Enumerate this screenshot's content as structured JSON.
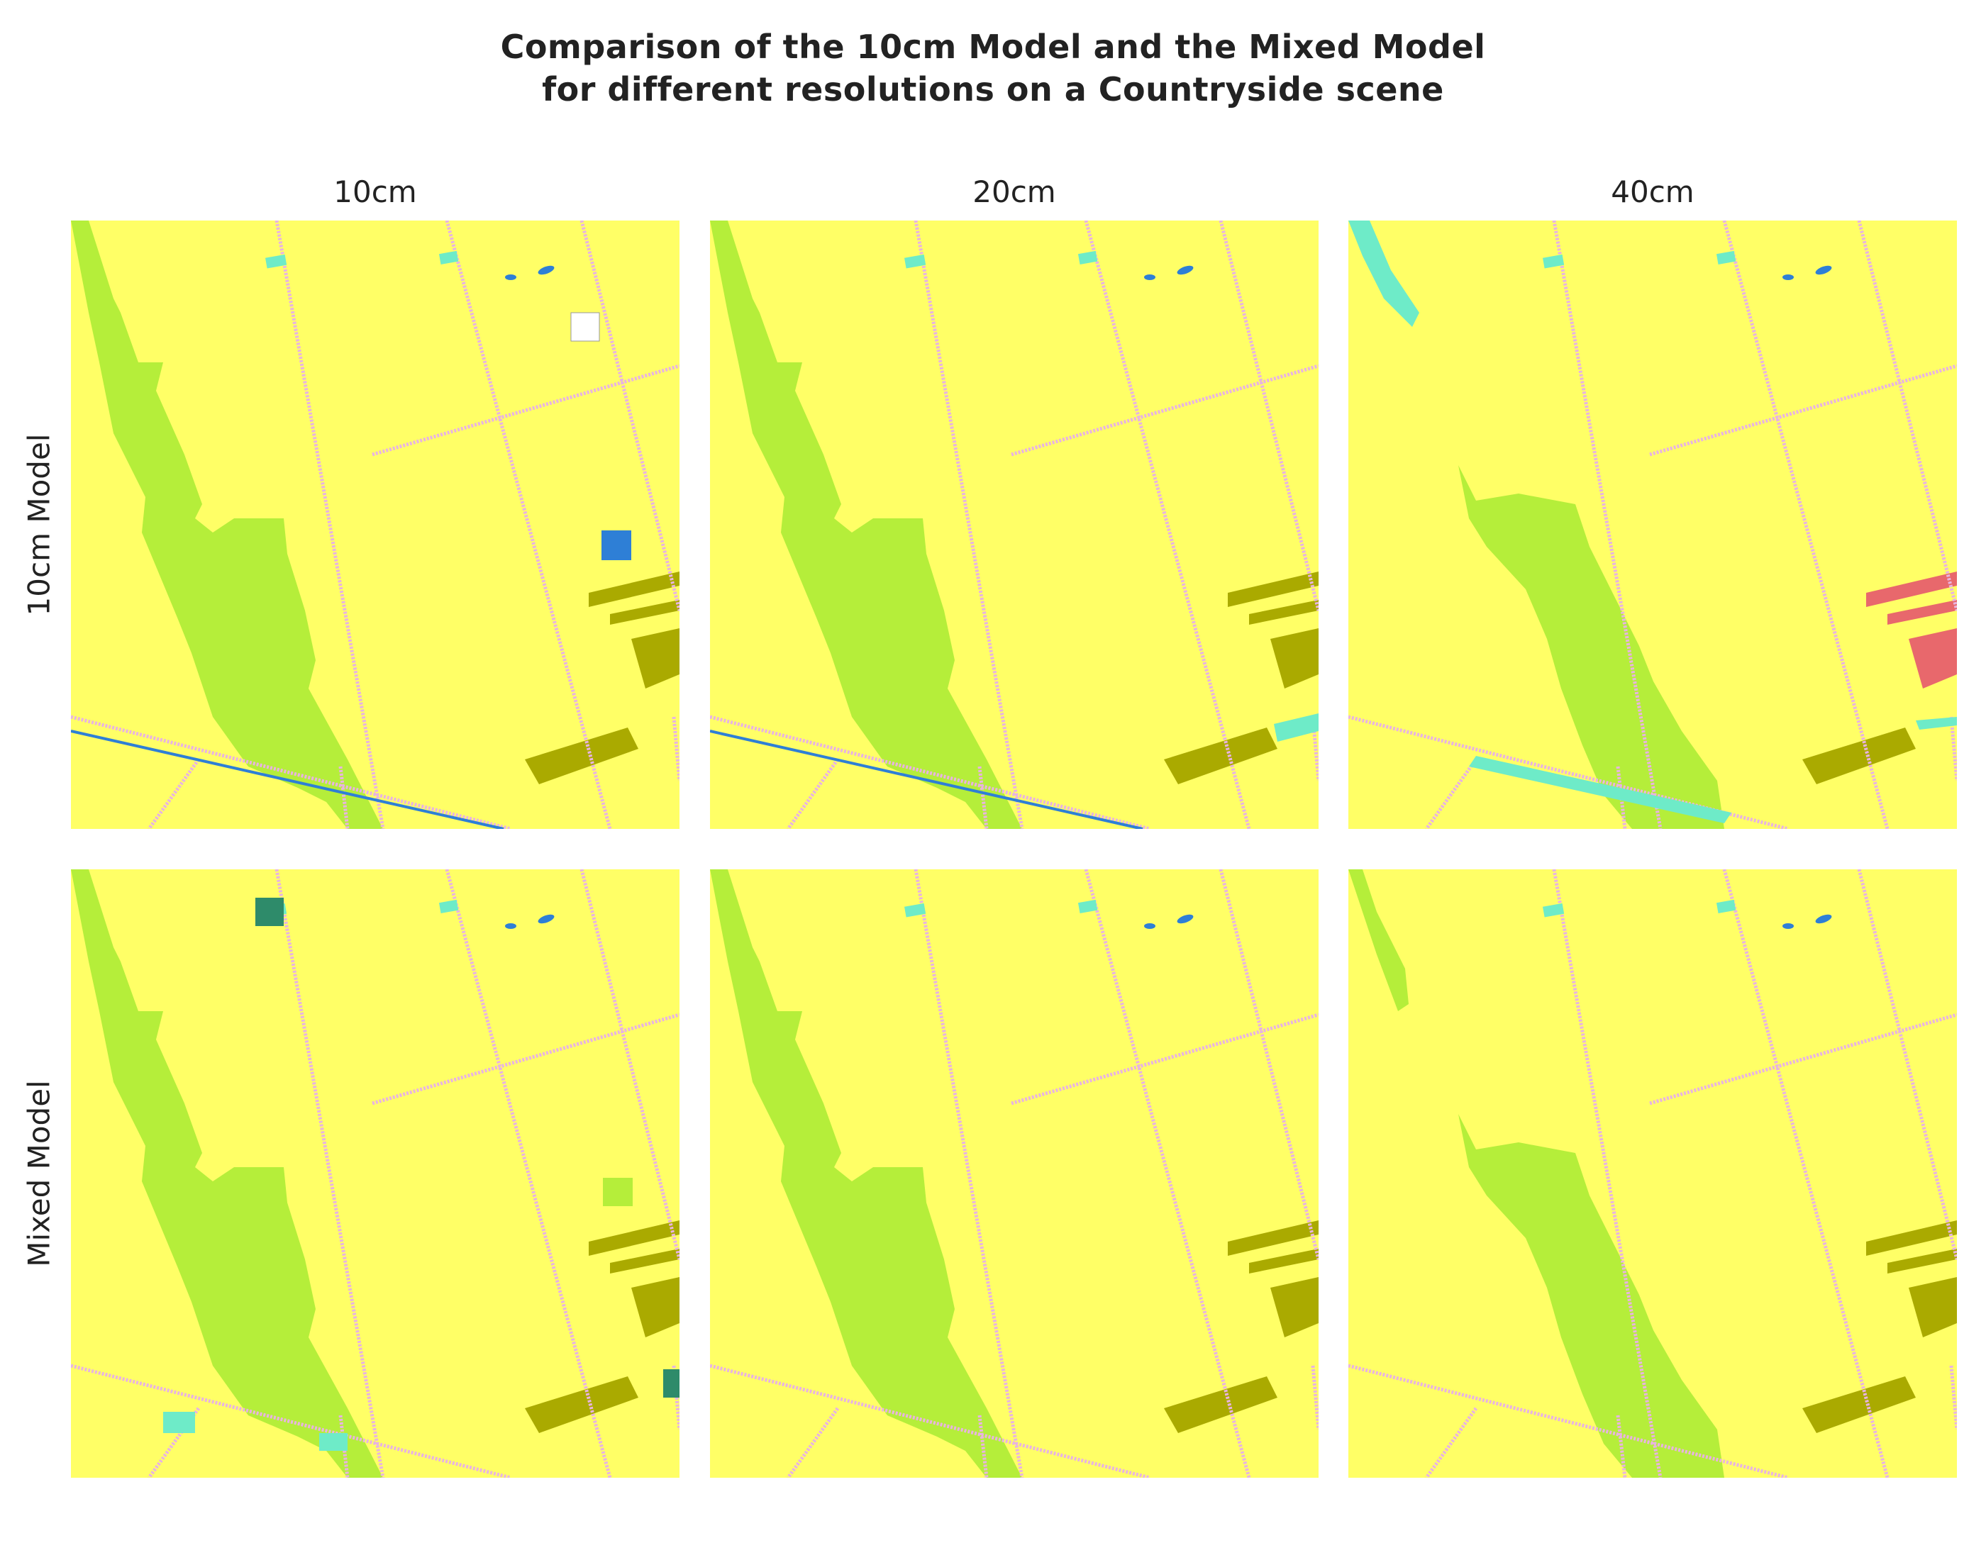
{
  "title_line1": "Comparison of the 10cm Model and the Mixed Model",
  "title_line2": "for different resolutions on a Countryside scene",
  "columns": [
    "10cm",
    "20cm",
    "40cm"
  ],
  "rows": [
    "10cm Model",
    "Mixed Model"
  ],
  "colors": {
    "field": "#FFFF66",
    "vegetation": "#B5EE3A",
    "crop": "#AAAA00",
    "road": "#E8B4E0",
    "water": "#2E7FD6",
    "cyan": "#6EEBC8",
    "red": "#E8686C",
    "teal": "#2E8B6A",
    "white": "#FFFFFF"
  }
}
